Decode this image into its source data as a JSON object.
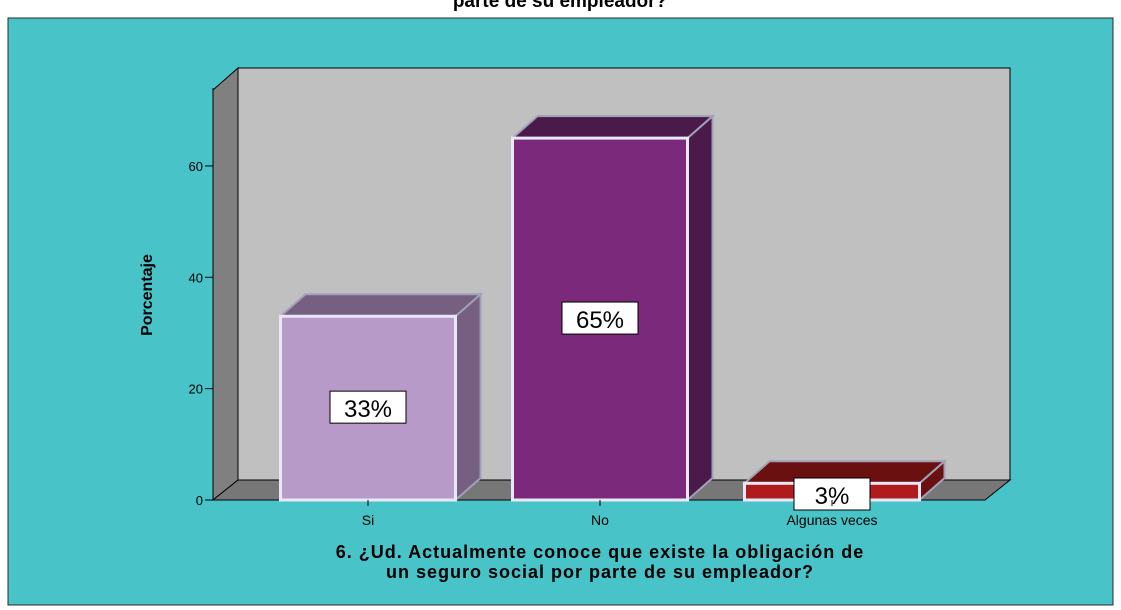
{
  "chart_data": {
    "type": "bar3d",
    "title": "parte de su empleador?",
    "categories": [
      "Si",
      "No",
      "Algunas veces"
    ],
    "values": [
      33,
      65,
      3
    ],
    "value_labels": [
      "33%",
      "65%",
      "3%"
    ],
    "colors": [
      "#b79ac8",
      "#7b2a7b",
      "#b01c1c"
    ],
    "side_colors": [
      "#765f80",
      "#4a1a4a",
      "#6a1010"
    ],
    "ylabel": "Porcentaje",
    "xlabel": [
      "6. ¿Ud. Actualmente conoce que existe la obligación de",
      "un seguro social por parte de su empleador?"
    ],
    "ylim": [
      0,
      74
    ],
    "yticks": [
      0,
      20,
      40,
      60
    ]
  }
}
